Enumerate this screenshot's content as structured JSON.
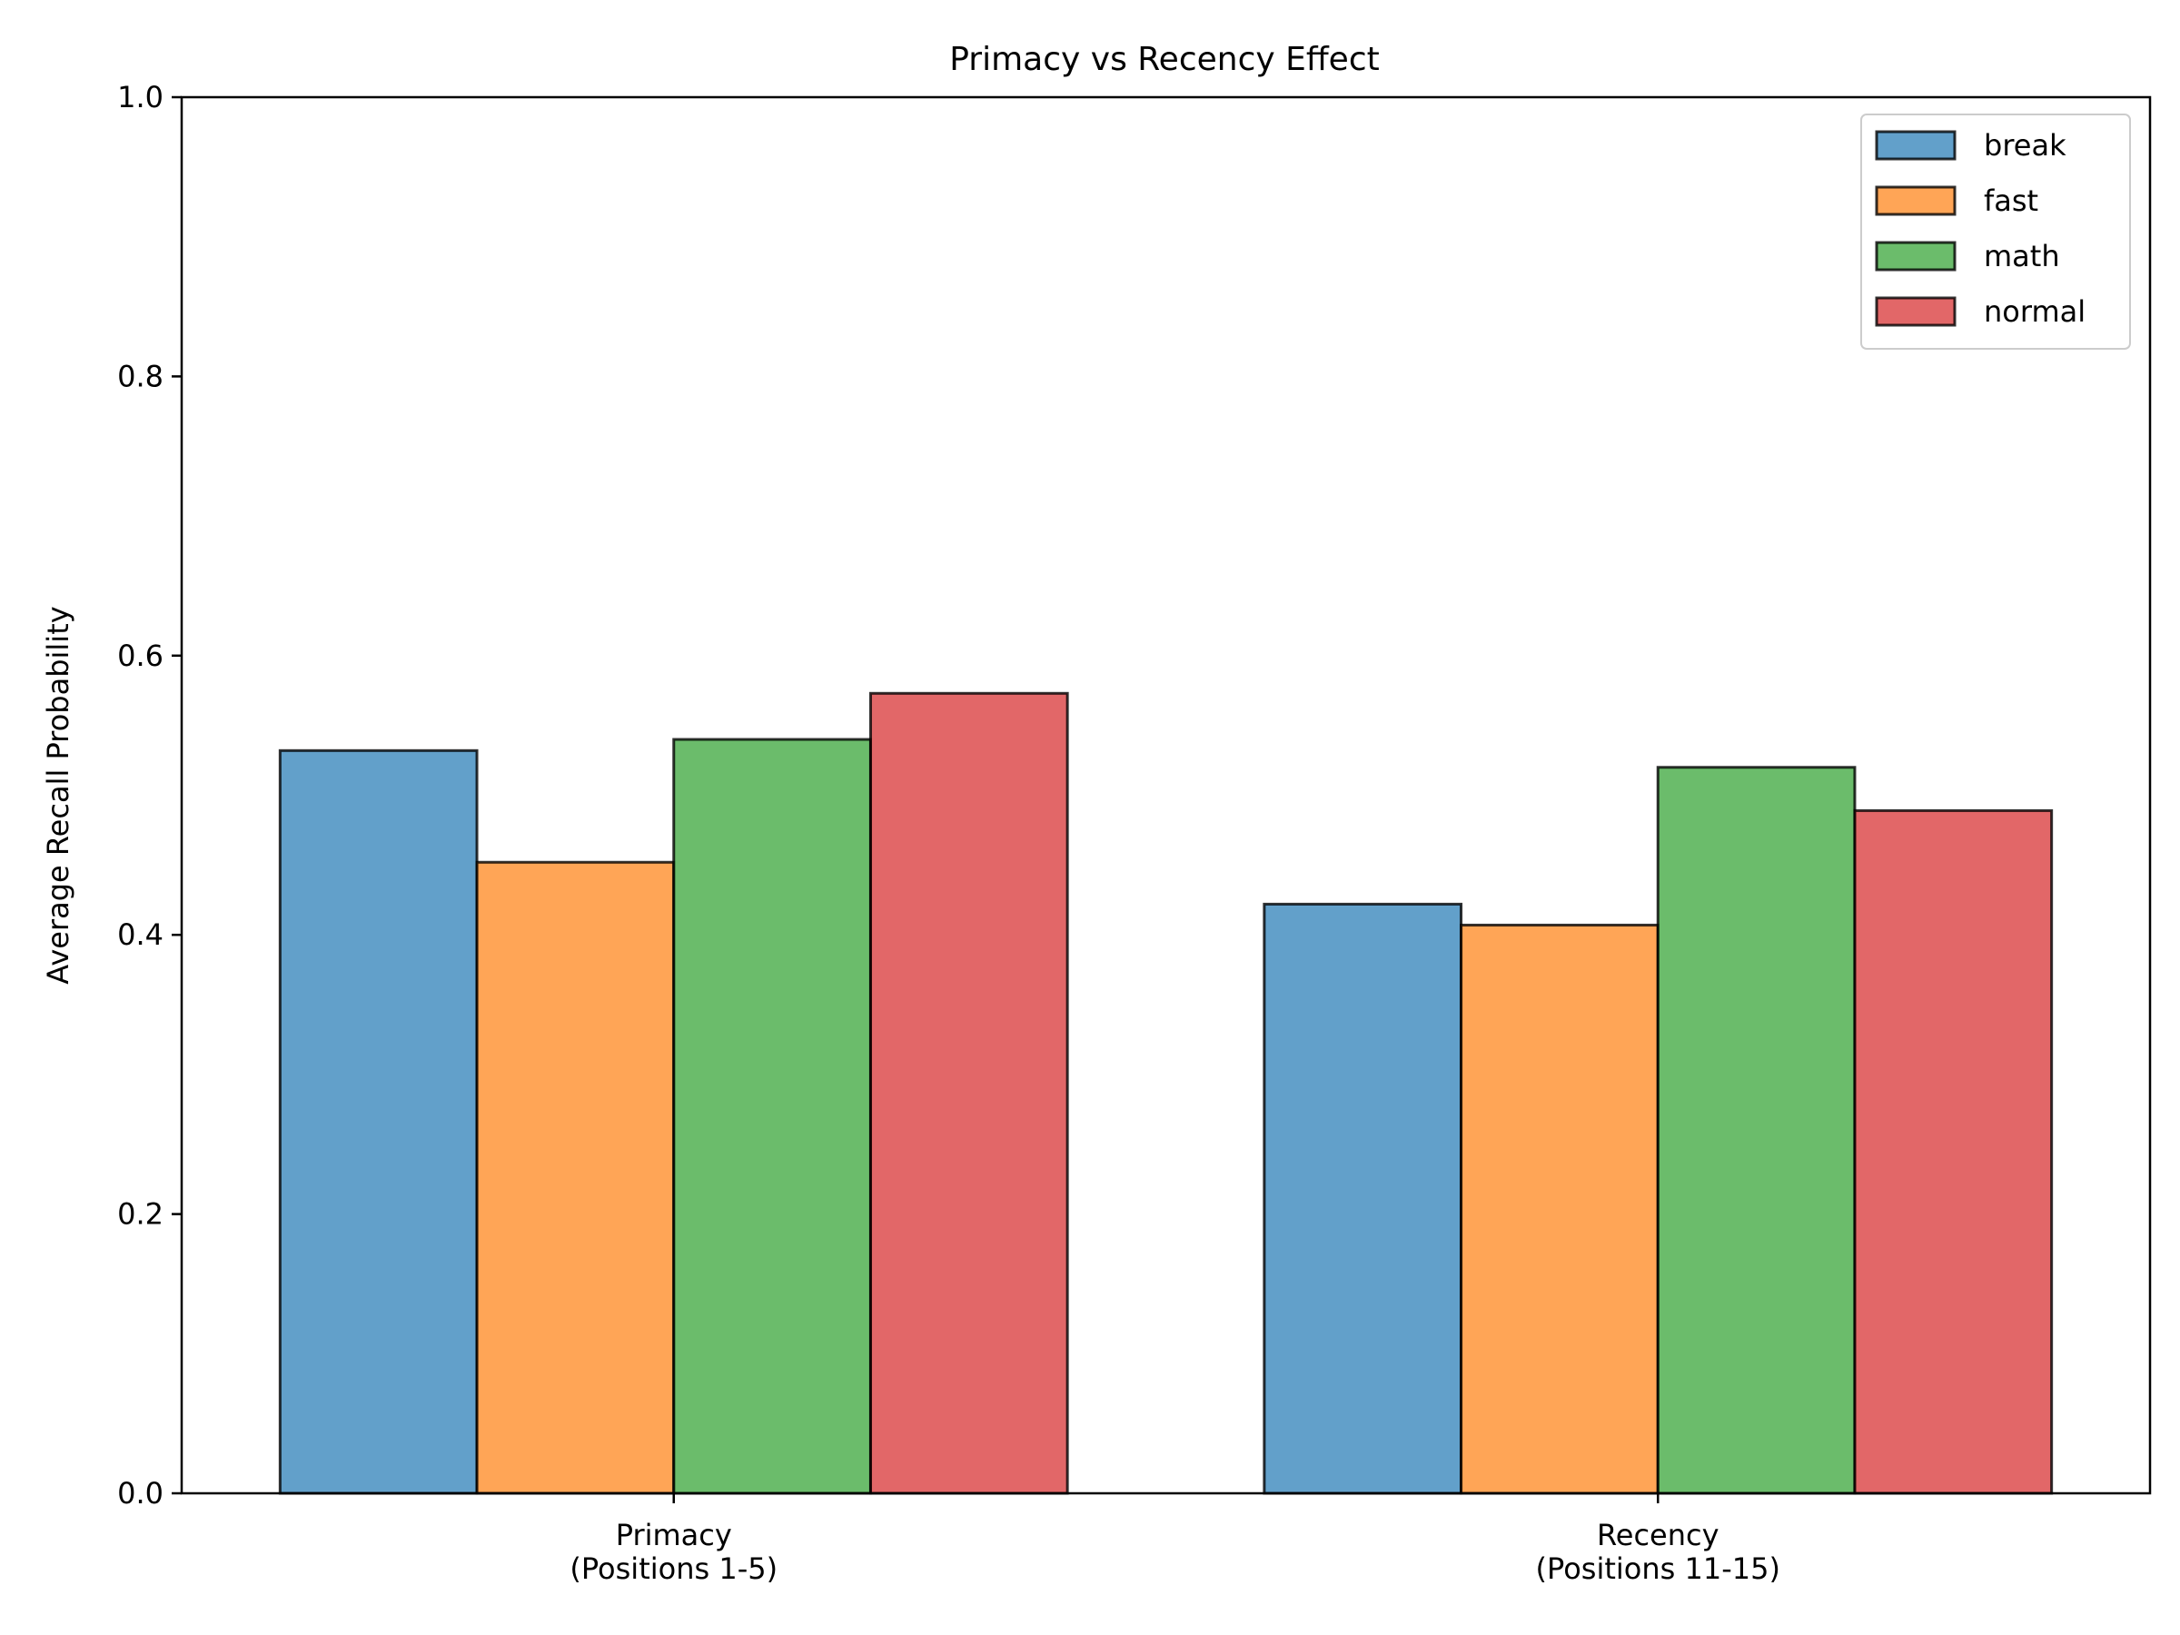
{
  "chart_data": {
    "type": "bar",
    "title": "Primacy vs Recency Effect",
    "xlabel": "",
    "ylabel": "Average Recall Probability",
    "ylim": [
      0,
      1.0
    ],
    "yticks": [
      "0.0",
      "0.2",
      "0.4",
      "0.6",
      "0.8",
      "1.0"
    ],
    "categories": [
      [
        "Primacy",
        "(Positions 1-5)"
      ],
      [
        "Recency",
        "(Positions 11-15)"
      ]
    ],
    "series": [
      {
        "name": "break",
        "color": "#1f77b4",
        "values": [
          0.532,
          0.422
        ]
      },
      {
        "name": "fast",
        "color": "#ff7f0e",
        "values": [
          0.452,
          0.407
        ]
      },
      {
        "name": "math",
        "color": "#2ca02c",
        "values": [
          0.54,
          0.52
        ]
      },
      {
        "name": "normal",
        "color": "#d62728",
        "values": [
          0.573,
          0.489
        ]
      }
    ],
    "grid": false,
    "legend_position": "top-right"
  }
}
